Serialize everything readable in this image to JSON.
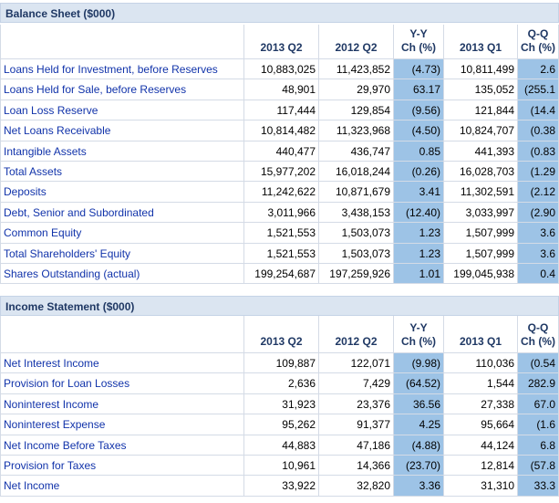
{
  "sections": [
    {
      "title": "Balance Sheet ($000)",
      "columns": [
        [
          "2013 Q2"
        ],
        [
          "2012 Q2"
        ],
        [
          "Y-Y",
          "Ch (%)"
        ],
        [
          "2013 Q1"
        ],
        [
          "Q-Q",
          "Ch (%)"
        ]
      ],
      "rows": [
        {
          "label": "Loans Held for Investment, before Reserves",
          "cells": [
            "10,883,025",
            "11,423,852",
            "(4.73)",
            "10,811,499",
            "2.6"
          ]
        },
        {
          "label": "Loans Held for Sale, before Reserves",
          "cells": [
            "48,901",
            "29,970",
            "63.17",
            "135,052",
            "(255.1"
          ]
        },
        {
          "label": "Loan Loss Reserve",
          "cells": [
            "117,444",
            "129,854",
            "(9.56)",
            "121,844",
            "(14.4"
          ]
        },
        {
          "label": "Net Loans Receivable",
          "cells": [
            "10,814,482",
            "11,323,968",
            "(4.50)",
            "10,824,707",
            "(0.38"
          ]
        },
        {
          "label": "Intangible Assets",
          "cells": [
            "440,477",
            "436,747",
            "0.85",
            "441,393",
            "(0.83"
          ]
        },
        {
          "label": "Total Assets",
          "cells": [
            "15,977,202",
            "16,018,244",
            "(0.26)",
            "16,028,703",
            "(1.29"
          ]
        },
        {
          "label": "Deposits",
          "cells": [
            "11,242,622",
            "10,871,679",
            "3.41",
            "11,302,591",
            "(2.12"
          ]
        },
        {
          "label": "Debt, Senior and Subordinated",
          "cells": [
            "3,011,966",
            "3,438,153",
            "(12.40)",
            "3,033,997",
            "(2.90"
          ]
        },
        {
          "label": "Common Equity",
          "cells": [
            "1,521,553",
            "1,503,073",
            "1.23",
            "1,507,999",
            "3.6"
          ]
        },
        {
          "label": "Total Shareholders' Equity",
          "cells": [
            "1,521,553",
            "1,503,073",
            "1.23",
            "1,507,999",
            "3.6"
          ]
        },
        {
          "label": "Shares Outstanding (actual)",
          "cells": [
            "199,254,687",
            "197,259,926",
            "1.01",
            "199,045,938",
            "0.4"
          ]
        }
      ]
    },
    {
      "title": "Income Statement ($000)",
      "columns": [
        [
          "2013 Q2"
        ],
        [
          "2012 Q2"
        ],
        [
          "Y-Y",
          "Ch (%)"
        ],
        [
          "2013 Q1"
        ],
        [
          "Q-Q",
          "Ch (%)"
        ]
      ],
      "rows": [
        {
          "label": "Net Interest Income",
          "cells": [
            "109,887",
            "122,071",
            "(9.98)",
            "110,036",
            "(0.54"
          ]
        },
        {
          "label": "Provision for Loan Losses",
          "cells": [
            "2,636",
            "7,429",
            "(64.52)",
            "1,544",
            "282.9"
          ]
        },
        {
          "label": "Noninterest Income",
          "cells": [
            "31,923",
            "23,376",
            "36.56",
            "27,338",
            "67.0"
          ]
        },
        {
          "label": "Noninterest Expense",
          "cells": [
            "95,262",
            "91,377",
            "4.25",
            "95,664",
            "(1.6"
          ]
        },
        {
          "label": "Net Income Before Taxes",
          "cells": [
            "44,883",
            "47,186",
            "(4.88)",
            "44,124",
            "6.8"
          ]
        },
        {
          "label": "Provision for Taxes",
          "cells": [
            "10,961",
            "14,366",
            "(23.70)",
            "12,814",
            "(57.8"
          ]
        },
        {
          "label": "Net Income",
          "cells": [
            "33,922",
            "32,820",
            "3.36",
            "31,310",
            "33.3"
          ]
        }
      ]
    }
  ]
}
